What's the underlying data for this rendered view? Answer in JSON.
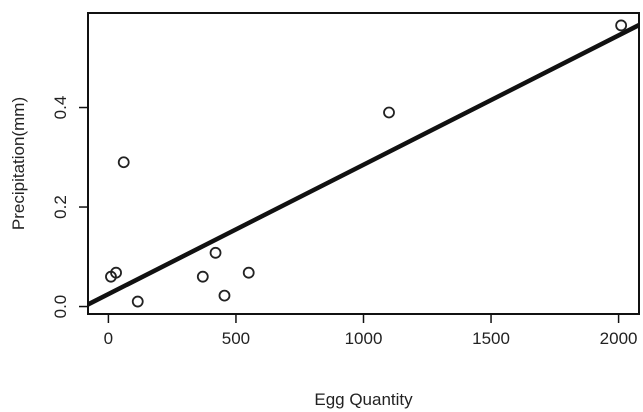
{
  "chart_data": {
    "type": "scatter",
    "title": "",
    "xlabel": "Egg Quantity",
    "ylabel": "Precipitation(mm)",
    "xlim": [
      -80,
      2080
    ],
    "ylim": [
      -0.015,
      0.59
    ],
    "x_ticks": [
      0,
      500,
      1000,
      1500,
      2000
    ],
    "x_tick_labels": [
      "0",
      "500",
      "1000",
      "1500",
      "2000"
    ],
    "y_ticks": [
      0.0,
      0.2,
      0.4
    ],
    "y_tick_labels": [
      "0.0",
      "0.2",
      "0.4"
    ],
    "grid": false,
    "points": [
      {
        "x": 10,
        "y": 0.06
      },
      {
        "x": 30,
        "y": 0.068
      },
      {
        "x": 60,
        "y": 0.29
      },
      {
        "x": 115,
        "y": 0.01
      },
      {
        "x": 370,
        "y": 0.06
      },
      {
        "x": 420,
        "y": 0.108
      },
      {
        "x": 455,
        "y": 0.022
      },
      {
        "x": 550,
        "y": 0.068
      },
      {
        "x": 1100,
        "y": 0.39
      },
      {
        "x": 2010,
        "y": 0.565
      }
    ],
    "fit_line": {
      "intercept": 0.025,
      "slope": 0.00026
    },
    "colors": {
      "points": "#222222",
      "fit_line": "#111111",
      "axes": "#111111"
    }
  }
}
